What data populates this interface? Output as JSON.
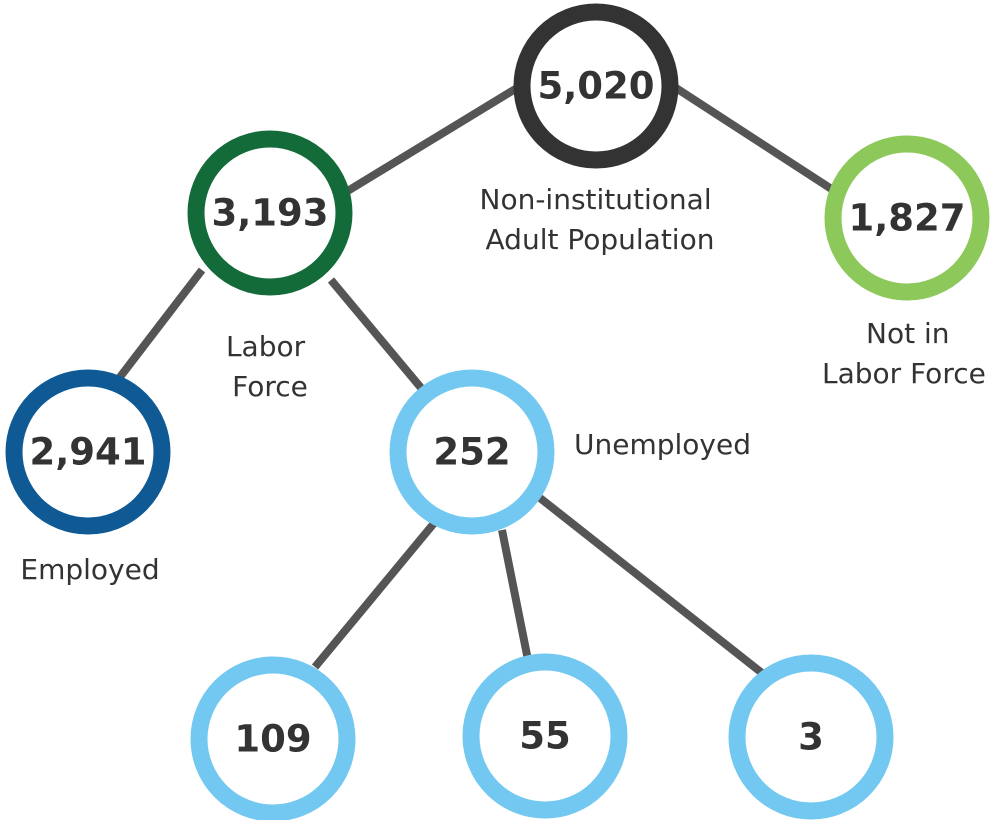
{
  "colors": {
    "edge": "#555555",
    "text": "#333333",
    "total": "#333333",
    "labor_force": "#146b3a",
    "not_in_labor_force": "#8cc85a",
    "employed": "#0f5a94",
    "unemployed": "#72c8f0"
  },
  "nodes": {
    "total": {
      "value": "5,020",
      "label_lines": [
        "Non-institutional",
        "Adult Population"
      ]
    },
    "labor_force": {
      "value": "3,193",
      "label_lines": [
        "Labor",
        "Force"
      ]
    },
    "not_in_labor_force": {
      "value": "1,827",
      "label_lines": [
        "Not in",
        "Labor Force"
      ]
    },
    "employed": {
      "value": "2,941",
      "label_lines": [
        "Employed"
      ]
    },
    "unemployed": {
      "value": "252",
      "label_lines": [
        "Unemployed"
      ]
    },
    "unemployed_sub_1": {
      "value": "109",
      "label_lines": []
    },
    "unemployed_sub_2": {
      "value": "55",
      "label_lines": []
    },
    "unemployed_sub_3": {
      "value": "3",
      "label_lines": []
    }
  }
}
